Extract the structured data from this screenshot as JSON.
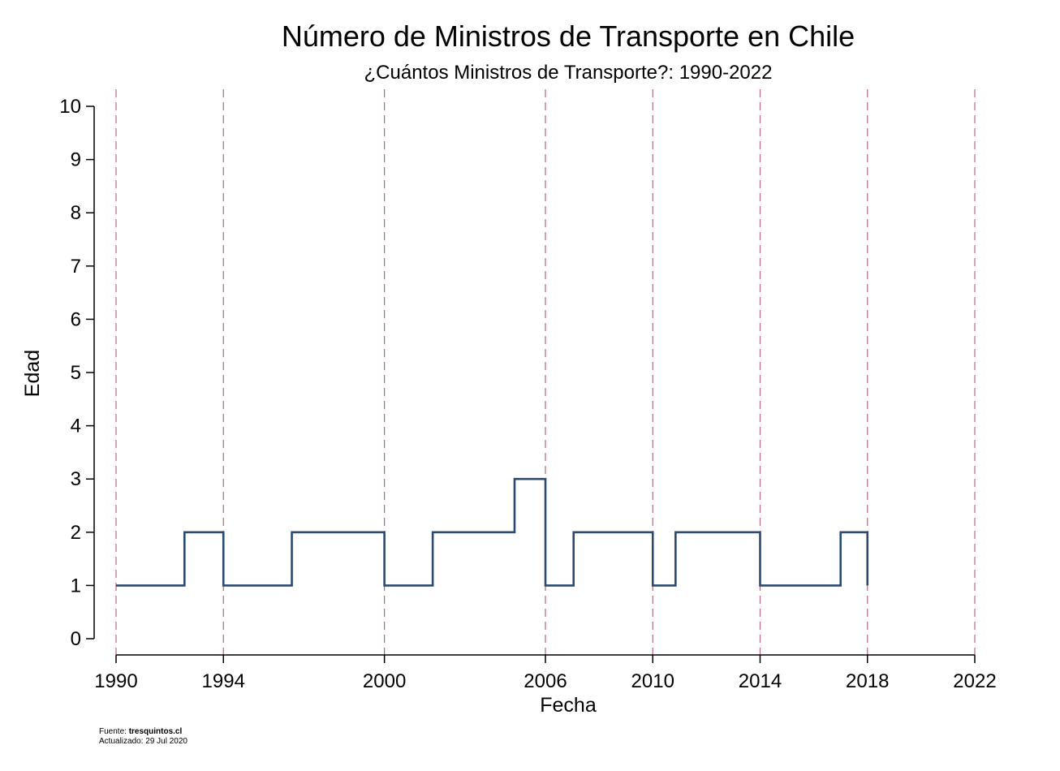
{
  "chart_data": {
    "type": "line",
    "style": "step",
    "title": "Número de Ministros de Transporte en Chile",
    "subtitle": "¿Cuántos Ministros de Transporte?: 1990-2022",
    "xlabel": "Fecha",
    "ylabel": "Edad",
    "xlim": [
      1990,
      2022
    ],
    "ylim": [
      0,
      10
    ],
    "x_ticks": [
      "1990",
      "1994",
      "2000",
      "2006",
      "2010",
      "2014",
      "2018",
      "2022"
    ],
    "y_ticks": [
      "0",
      "1",
      "2",
      "3",
      "4",
      "5",
      "6",
      "7",
      "8",
      "9",
      "10"
    ],
    "vertical_reference_lines": [
      1990,
      1994,
      2000,
      2006,
      2010,
      2014,
      2018,
      2022
    ],
    "grid": false,
    "series": [
      {
        "color": "#2b4a6e",
        "points": [
          {
            "x": 1990.0,
            "y": 1
          },
          {
            "x": 1992.55,
            "y": 2
          },
          {
            "x": 1994.0,
            "y": 1
          },
          {
            "x": 1996.55,
            "y": 2
          },
          {
            "x": 2000.0,
            "y": 1
          },
          {
            "x": 2001.8,
            "y": 2
          },
          {
            "x": 2004.85,
            "y": 3
          },
          {
            "x": 2006.0,
            "y": 1
          },
          {
            "x": 2007.05,
            "y": 2
          },
          {
            "x": 2010.0,
            "y": 1
          },
          {
            "x": 2010.85,
            "y": 2
          },
          {
            "x": 2014.0,
            "y": 1
          },
          {
            "x": 2017.0,
            "y": 2
          },
          {
            "x": 2018.0,
            "y": 1
          }
        ]
      }
    ]
  },
  "colors": {
    "line": "#2b4a6e",
    "reference_line": "#b5687f",
    "axis": "#000000"
  },
  "footer": {
    "source_label": "Fuente:",
    "source_value": "tresquintos.cl",
    "updated": "Actualizado: 29 Jul 2020"
  }
}
